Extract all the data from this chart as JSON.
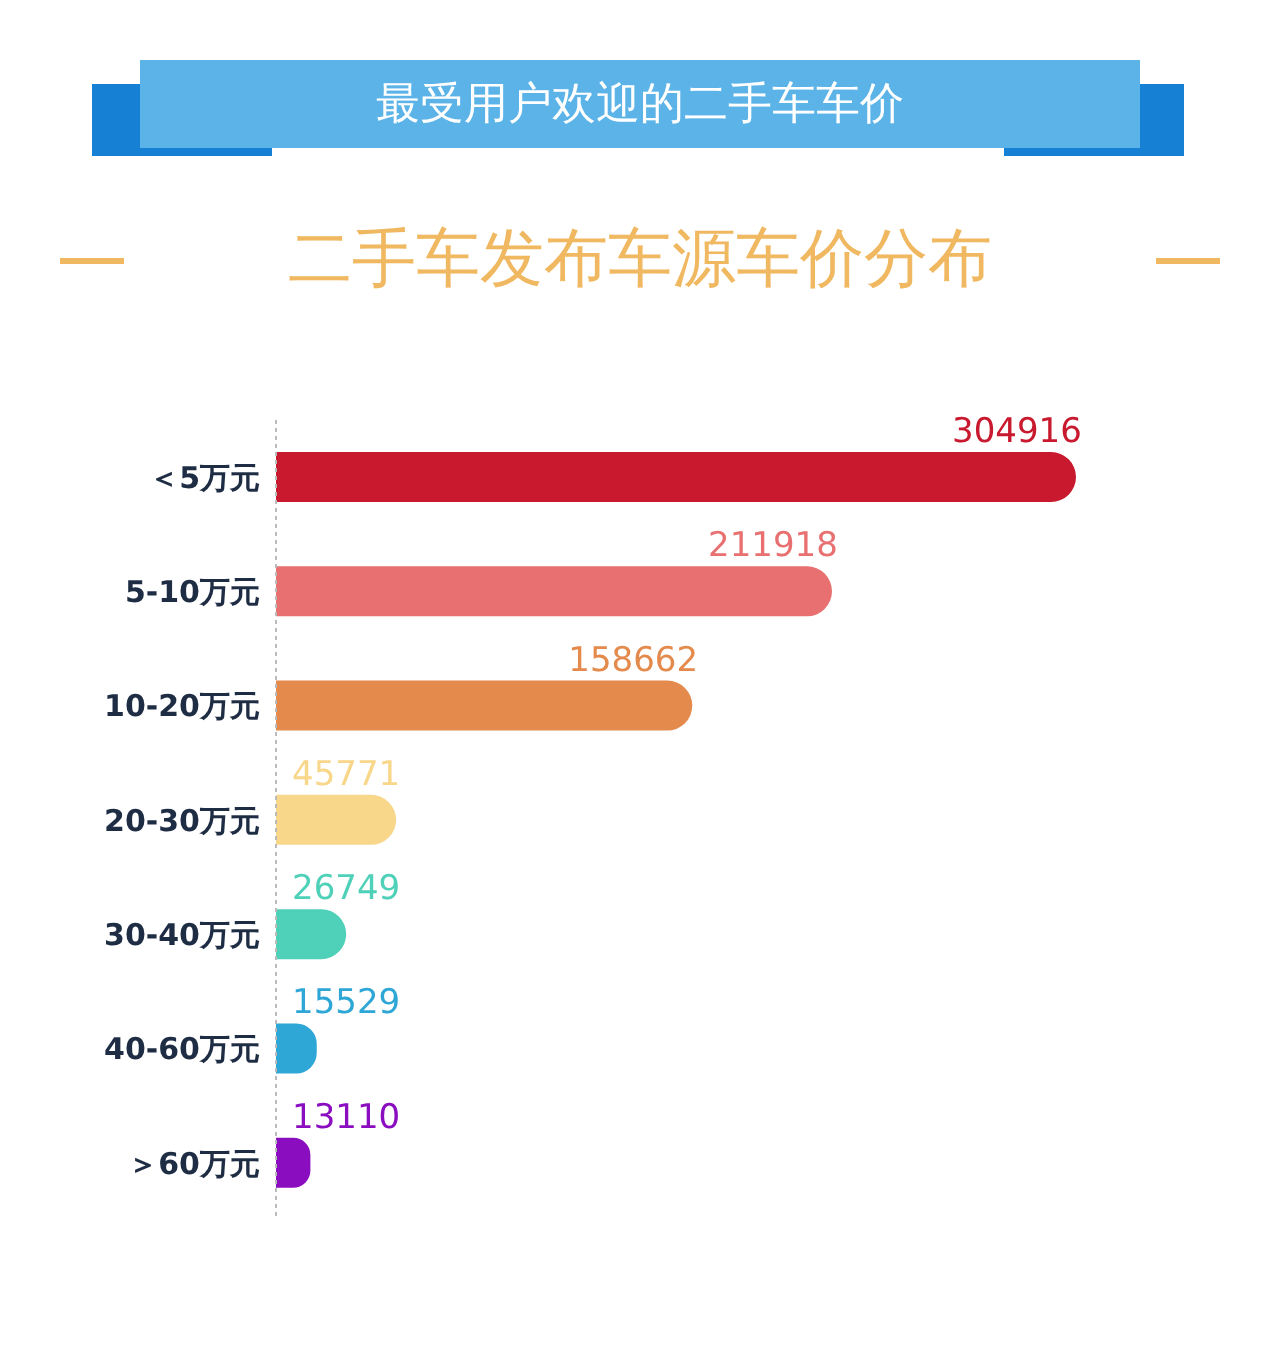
{
  "chart_data": {
    "type": "bar",
    "orientation": "horizontal",
    "title": "最受用户欢迎的二手车车价",
    "subtitle": "二手车发布车源车价分布",
    "categories": [
      "＜5万元",
      "5-10万元",
      "10-20万元",
      "20-30万元",
      "30-40万元",
      "40-60万元",
      "＞60万元"
    ],
    "values": [
      304916,
      211918,
      158662,
      45771,
      26749,
      15529,
      13110
    ],
    "colors": [
      "#c8192e",
      "#e87070",
      "#e48a4c",
      "#f8d68a",
      "#4fd0b8",
      "#2ea6d6",
      "#8a0dc0"
    ],
    "data_labels": true,
    "tick_labels": "y"
  }
}
